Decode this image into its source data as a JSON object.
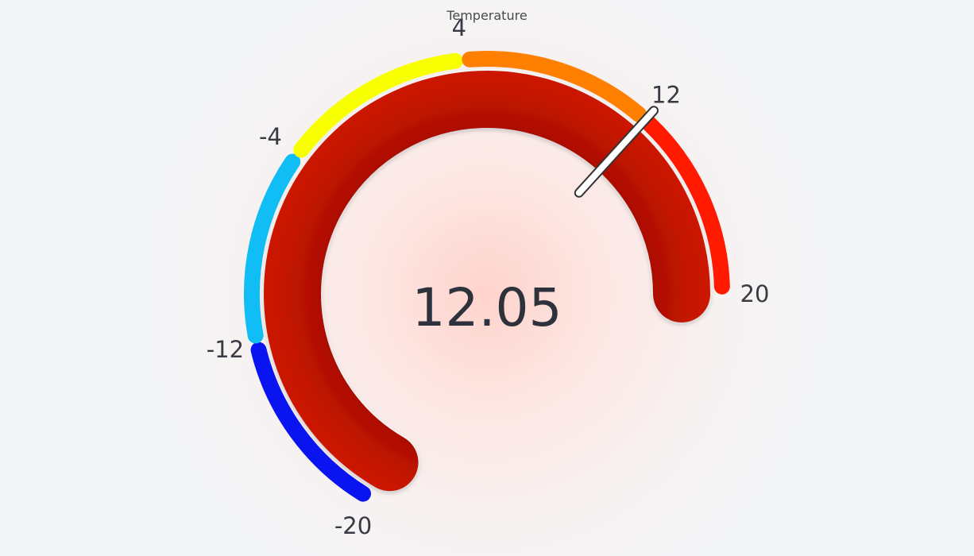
{
  "title": "Temperature",
  "chart_data": {
    "type": "gauge",
    "title": "Temperature",
    "min": -20,
    "max": 20,
    "value": 12.05,
    "value_label": "12.05",
    "tick_labels": [
      "-20",
      "-12",
      "-4",
      "4",
      "12",
      "20"
    ],
    "ticks": [
      -20,
      -12,
      -4,
      4,
      12,
      20
    ],
    "bands": [
      {
        "from": -20,
        "to": -12,
        "color": "#0a14f0"
      },
      {
        "from": -12,
        "to": -4,
        "color": "#10bef5"
      },
      {
        "from": -4,
        "to": 4,
        "color": "#f8ff00"
      },
      {
        "from": 4,
        "to": 12,
        "color": "#ff8000"
      },
      {
        "from": 12,
        "to": 20,
        "color": "#ff1a00"
      }
    ],
    "value_bar_color": "#b81004",
    "needle_color": "#ffffff"
  }
}
